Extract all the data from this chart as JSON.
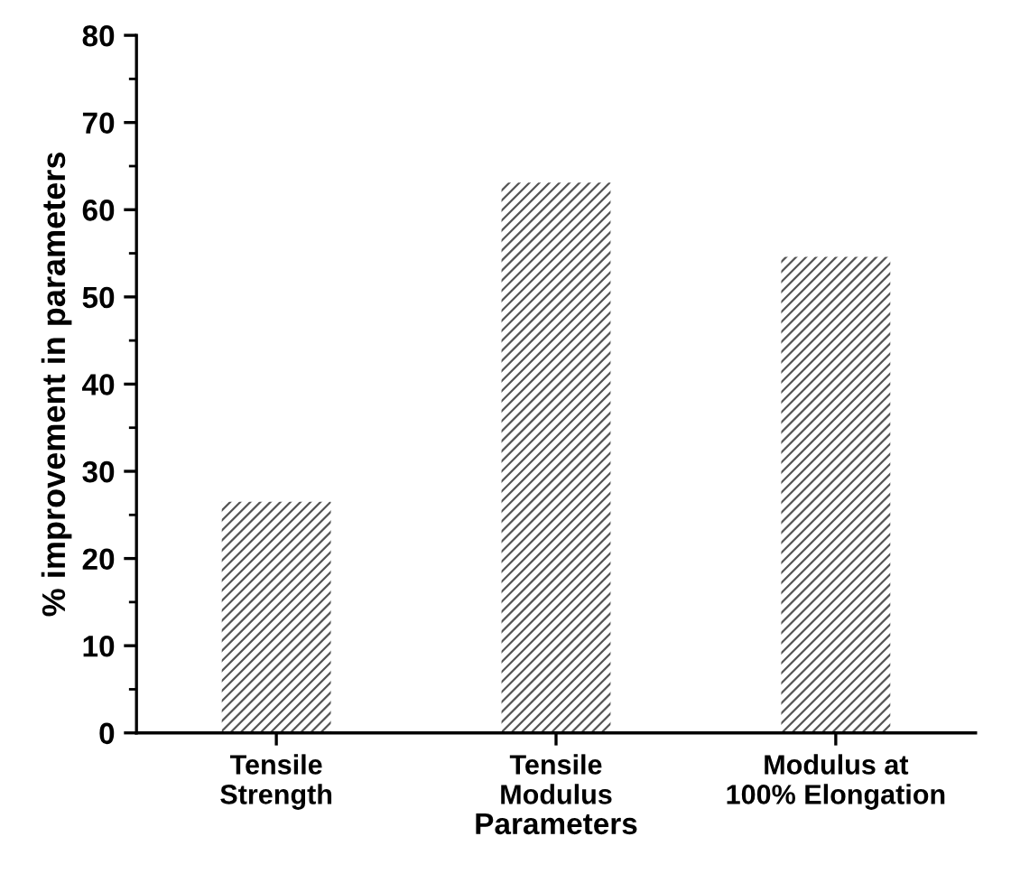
{
  "chart_data": {
    "type": "bar",
    "xlabel": "Parameters",
    "ylabel": "% improvement in parameters",
    "categories": [
      "Tensile\nStrength",
      "Tensile\nModulus",
      "Modulus at\n100% Elongation"
    ],
    "values": [
      26.5,
      63.1,
      54.6
    ],
    "color": "#555555",
    "ylim": [
      0,
      80
    ],
    "yticks": [
      0,
      10,
      20,
      30,
      40,
      50,
      60,
      70,
      80
    ],
    "grid": false,
    "legend": false
  }
}
